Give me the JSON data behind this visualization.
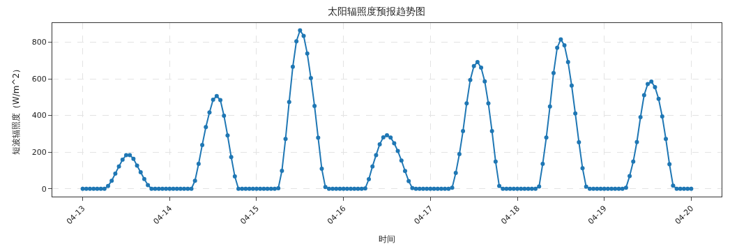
{
  "chart_data": {
    "type": "line",
    "title": "太阳辐照度预报趋势图",
    "xlabel": "时间",
    "ylabel": "短波辐照度（W/m^2）",
    "x": [
      "--04-13T00:00",
      "--04-13T01:00",
      "--04-13T02:00",
      "--04-13T03:00",
      "--04-13T04:00",
      "--04-13T05:00",
      "--04-13T06:00",
      "--04-13T07:00",
      "--04-13T08:00",
      "--04-13T09:00",
      "--04-13T10:00",
      "--04-13T11:00",
      "--04-13T12:00",
      "--04-13T13:00",
      "--04-13T14:00",
      "--04-13T15:00",
      "--04-13T16:00",
      "--04-13T17:00",
      "--04-13T18:00",
      "--04-13T19:00",
      "--04-13T20:00",
      "--04-13T21:00",
      "--04-13T22:00",
      "--04-13T23:00",
      "--04-14T00:00",
      "--04-14T01:00",
      "--04-14T02:00",
      "--04-14T03:00",
      "--04-14T04:00",
      "--04-14T05:00",
      "--04-14T06:00",
      "--04-14T07:00",
      "--04-14T08:00",
      "--04-14T09:00",
      "--04-14T10:00",
      "--04-14T11:00",
      "--04-14T12:00",
      "--04-14T13:00",
      "--04-14T14:00",
      "--04-14T15:00",
      "--04-14T16:00",
      "--04-14T17:00",
      "--04-14T18:00",
      "--04-14T19:00",
      "--04-14T20:00",
      "--04-14T21:00",
      "--04-14T22:00",
      "--04-14T23:00",
      "--04-15T00:00",
      "--04-15T01:00",
      "--04-15T02:00",
      "--04-15T03:00",
      "--04-15T04:00",
      "--04-15T05:00",
      "--04-15T06:00",
      "--04-15T07:00",
      "--04-15T08:00",
      "--04-15T09:00",
      "--04-15T10:00",
      "--04-15T11:00",
      "--04-15T12:00",
      "--04-15T13:00",
      "--04-15T14:00",
      "--04-15T15:00",
      "--04-15T16:00",
      "--04-15T17:00",
      "--04-15T18:00",
      "--04-15T19:00",
      "--04-15T20:00",
      "--04-15T21:00",
      "--04-15T22:00",
      "--04-15T23:00",
      "--04-16T00:00",
      "--04-16T01:00",
      "--04-16T02:00",
      "--04-16T03:00",
      "--04-16T04:00",
      "--04-16T05:00",
      "--04-16T06:00",
      "--04-16T07:00",
      "--04-16T08:00",
      "--04-16T09:00",
      "--04-16T10:00",
      "--04-16T11:00",
      "--04-16T12:00",
      "--04-16T13:00",
      "--04-16T14:00",
      "--04-16T15:00",
      "--04-16T16:00",
      "--04-16T17:00",
      "--04-16T18:00",
      "--04-16T19:00",
      "--04-16T20:00",
      "--04-16T21:00",
      "--04-16T22:00",
      "--04-16T23:00",
      "--04-17T00:00",
      "--04-17T01:00",
      "--04-17T02:00",
      "--04-17T03:00",
      "--04-17T04:00",
      "--04-17T05:00",
      "--04-17T06:00",
      "--04-17T07:00",
      "--04-17T08:00",
      "--04-17T09:00",
      "--04-17T10:00",
      "--04-17T11:00",
      "--04-17T12:00",
      "--04-17T13:00",
      "--04-17T14:00",
      "--04-17T15:00",
      "--04-17T16:00",
      "--04-17T17:00",
      "--04-17T18:00",
      "--04-17T19:00",
      "--04-17T20:00",
      "--04-17T21:00",
      "--04-17T22:00",
      "--04-17T23:00",
      "--04-18T00:00",
      "--04-18T01:00",
      "--04-18T02:00",
      "--04-18T03:00",
      "--04-18T04:00",
      "--04-18T05:00",
      "--04-18T06:00",
      "--04-18T07:00",
      "--04-18T08:00",
      "--04-18T09:00",
      "--04-18T10:00",
      "--04-18T11:00",
      "--04-18T12:00",
      "--04-18T13:00",
      "--04-18T14:00",
      "--04-18T15:00",
      "--04-18T16:00",
      "--04-18T17:00",
      "--04-18T18:00",
      "--04-18T19:00",
      "--04-18T20:00",
      "--04-18T21:00",
      "--04-18T22:00",
      "--04-18T23:00",
      "--04-19T00:00",
      "--04-19T01:00",
      "--04-19T02:00",
      "--04-19T03:00",
      "--04-19T04:00",
      "--04-19T05:00",
      "--04-19T06:00",
      "--04-19T07:00",
      "--04-19T08:00",
      "--04-19T09:00",
      "--04-19T10:00",
      "--04-19T11:00",
      "--04-19T12:00",
      "--04-19T13:00",
      "--04-19T14:00",
      "--04-19T15:00",
      "--04-19T16:00",
      "--04-19T17:00",
      "--04-19T18:00",
      "--04-19T19:00",
      "--04-19T20:00",
      "--04-19T21:00",
      "--04-19T22:00",
      "--04-19T23:00",
      "--04-20T00:00"
    ],
    "series": [
      {
        "color": "#1f77b4",
        "values": [
          0,
          0,
          0,
          0,
          0,
          0,
          0,
          15,
          44,
          83,
          122,
          159,
          184,
          184,
          164,
          126,
          90,
          53,
          20,
          0,
          0,
          0,
          0,
          0,
          0,
          0,
          0,
          0,
          0,
          0,
          0,
          44,
          136,
          239,
          337,
          417,
          486,
          506,
          484,
          399,
          291,
          173,
          67,
          0,
          0,
          0,
          0,
          0,
          0,
          0,
          0,
          0,
          0,
          0,
          3,
          98,
          272,
          474,
          666,
          805,
          865,
          835,
          738,
          604,
          452,
          279,
          109,
          9,
          0,
          0,
          0,
          0,
          0,
          0,
          0,
          0,
          0,
          0,
          2,
          52,
          122,
          184,
          243,
          281,
          292,
          280,
          248,
          206,
          154,
          97,
          42,
          4,
          0,
          0,
          0,
          0,
          0,
          0,
          0,
          0,
          0,
          0,
          6,
          86,
          189,
          315,
          466,
          594,
          670,
          692,
          661,
          586,
          466,
          315,
          148,
          15,
          0,
          0,
          0,
          0,
          0,
          0,
          0,
          0,
          0,
          0,
          12,
          136,
          280,
          449,
          632,
          770,
          816,
          783,
          692,
          563,
          411,
          254,
          112,
          11,
          0,
          0,
          0,
          0,
          0,
          0,
          0,
          0,
          0,
          0,
          6,
          69,
          148,
          255,
          391,
          511,
          572,
          585,
          555,
          491,
          395,
          272,
          134,
          17,
          0,
          0,
          0,
          0,
          0
        ]
      }
    ],
    "xlim": [
      "--04-12T15:36",
      "--04-20T08:24"
    ],
    "xticks": [
      {
        "value": "--04-13",
        "label": "04-13"
      },
      {
        "value": "--04-14",
        "label": "04-14"
      },
      {
        "value": "--04-15",
        "label": "04-15"
      },
      {
        "value": "--04-16",
        "label": "04-16"
      },
      {
        "value": "--04-17",
        "label": "04-17"
      },
      {
        "value": "--04-18",
        "label": "04-18"
      },
      {
        "value": "--04-19",
        "label": "04-19"
      },
      {
        "value": "--04-20",
        "label": "04-20"
      }
    ],
    "ylim": [
      -43,
      905
    ],
    "yticks": [
      0,
      200,
      400,
      600,
      800
    ],
    "grid": true,
    "marker": "circle",
    "line_style": "solid"
  }
}
